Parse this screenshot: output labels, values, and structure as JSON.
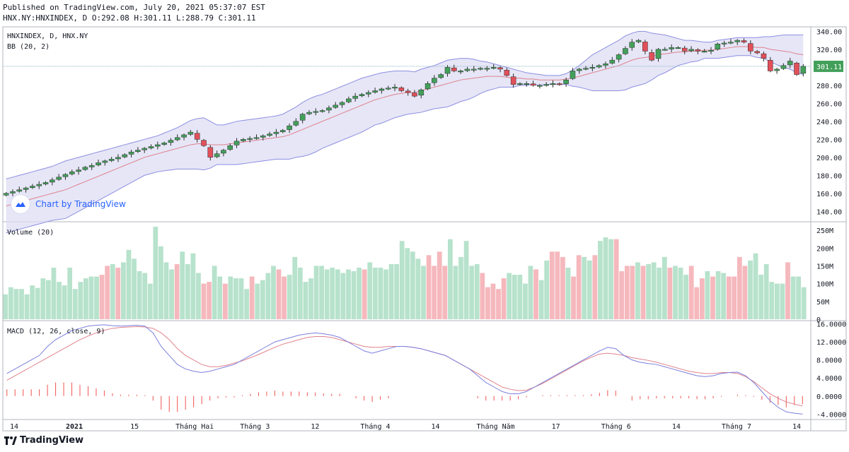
{
  "header": {
    "published": "Published on TradingView.com, July 20, 2021 05:37:07 EST",
    "ohlc_line": "HNX.NY:HNXINDEX, D O:292.08 H:301.11 L:288.79 C:301.11"
  },
  "footer": {
    "brand": "TradingView"
  },
  "watermark": {
    "label": "Chart by TradingView"
  },
  "colors": {
    "up": "#26a69a",
    "down": "#ef5350",
    "up_candle": "#43a05a",
    "down_candle": "#e2505a",
    "vol_up": "#b7e2cc",
    "vol_down": "#f5b8bd",
    "bb_band": "#8c8ee0",
    "bb_fill": "#dedef4",
    "basis": "#e0828c",
    "macd": "#7b7fdc",
    "signal": "#e0828c",
    "hist": "#ef5350",
    "price_badge": "#43a05a"
  },
  "chart_data": [
    {
      "type": "candlestick",
      "legend": [
        "HNXINDEX, D, HNX.NY",
        "BB (20, 2)"
      ],
      "ylim": [
        130,
        345
      ],
      "y_ticks": [
        "340.00",
        "320.00",
        "300.00",
        "280.00",
        "260.00",
        "240.00",
        "220.00",
        "200.00",
        "180.00",
        "160.00",
        "140.00"
      ],
      "last_price": "301.11",
      "closes": [
        160,
        162,
        164,
        166,
        168,
        170,
        172,
        175,
        178,
        181,
        184,
        186,
        189,
        191,
        194,
        196,
        198,
        200,
        203,
        206,
        208,
        210,
        212,
        214,
        216,
        219,
        222,
        225,
        228,
        220,
        213,
        200,
        204,
        208,
        213,
        218,
        220,
        221,
        222,
        224,
        226,
        228,
        230,
        235,
        240,
        248,
        250,
        251,
        252,
        255,
        258,
        261,
        265,
        268,
        270,
        272,
        274,
        276,
        277,
        278,
        274,
        272,
        268,
        275,
        282,
        288,
        292,
        300,
        296,
        296,
        298,
        298,
        299,
        299,
        300,
        298,
        291,
        281,
        282,
        282,
        280,
        280,
        281,
        282,
        281,
        286,
        296,
        298,
        299,
        300,
        302,
        304,
        308,
        314,
        321,
        328,
        330,
        318,
        308,
        320,
        320,
        322,
        322,
        318,
        320,
        318,
        318,
        319,
        326,
        327,
        328,
        330,
        328,
        318,
        316,
        310,
        296,
        298,
        302,
        307,
        292,
        301.11
      ],
      "bb_upper": [
        176,
        178,
        180,
        182,
        184,
        186,
        188,
        190,
        193,
        196,
        198,
        200,
        202,
        204,
        206,
        208,
        210,
        212,
        214,
        216,
        218,
        220,
        222,
        224,
        227,
        230,
        233,
        237,
        241,
        243,
        244,
        240,
        236,
        236,
        238,
        240,
        241,
        242,
        243,
        244,
        245,
        246,
        248,
        252,
        256,
        261,
        265,
        268,
        270,
        273,
        276,
        279,
        282,
        285,
        288,
        290,
        292,
        294,
        295,
        296,
        296,
        296,
        295,
        298,
        300,
        302,
        305,
        308,
        309,
        310,
        310,
        309,
        307,
        306,
        304,
        302,
        300,
        298,
        296,
        294,
        293,
        292,
        291,
        291,
        291,
        293,
        297,
        302,
        308,
        314,
        318,
        322,
        326,
        330,
        335,
        338,
        340,
        340,
        338,
        337,
        336,
        334,
        332,
        330,
        330,
        329,
        328,
        328,
        330,
        331,
        332,
        333,
        333,
        333,
        333,
        334,
        334,
        335,
        336,
        336,
        336,
        336
      ],
      "bb_basis": [
        146,
        148,
        150,
        152,
        154,
        156,
        158,
        160,
        162,
        164,
        167,
        170,
        173,
        176,
        179,
        182,
        185,
        188,
        191,
        194,
        197,
        200,
        202,
        204,
        206,
        208,
        210,
        212,
        214,
        215,
        215,
        214,
        214,
        214,
        215,
        216,
        217,
        218,
        219,
        220,
        221,
        222,
        223,
        225,
        228,
        231,
        234,
        237,
        240,
        243,
        246,
        249,
        252,
        255,
        258,
        261,
        264,
        266,
        268,
        270,
        271,
        272,
        272,
        274,
        276,
        278,
        280,
        282,
        284,
        286,
        287,
        288,
        289,
        290,
        290,
        290,
        289,
        288,
        288,
        287,
        287,
        286,
        286,
        286,
        286,
        287,
        288,
        290,
        292,
        294,
        296,
        298,
        300,
        302,
        305,
        308,
        310,
        311,
        312,
        314,
        315,
        316,
        317,
        317,
        318,
        318,
        319,
        319,
        320,
        321,
        322,
        323,
        323,
        323,
        322,
        322,
        320,
        319,
        318,
        317,
        315,
        314
      ],
      "bb_lower": [
        116,
        118,
        120,
        122,
        124,
        126,
        128,
        130,
        131,
        132,
        136,
        140,
        144,
        148,
        152,
        156,
        160,
        164,
        168,
        172,
        176,
        180,
        182,
        184,
        185,
        186,
        187,
        187,
        187,
        187,
        186,
        188,
        192,
        192,
        192,
        192,
        193,
        194,
        195,
        196,
        197,
        198,
        198,
        198,
        200,
        201,
        203,
        206,
        210,
        213,
        216,
        219,
        222,
        225,
        228,
        232,
        236,
        238,
        241,
        244,
        246,
        248,
        249,
        250,
        252,
        254,
        255,
        256,
        259,
        262,
        264,
        267,
        271,
        274,
        276,
        278,
        278,
        278,
        280,
        280,
        281,
        280,
        281,
        281,
        281,
        281,
        279,
        278,
        276,
        274,
        274,
        274,
        274,
        274,
        275,
        278,
        280,
        282,
        286,
        291,
        294,
        298,
        302,
        304,
        306,
        307,
        310,
        310,
        310,
        311,
        312,
        313,
        313,
        313,
        311,
        310,
        306,
        303,
        300,
        298,
        294,
        292
      ]
    },
    {
      "type": "bar",
      "legend": "Volume (20)",
      "ylim": [
        0,
        270
      ],
      "y_ticks": [
        "250M",
        "200M",
        "150M",
        "100M",
        "50M",
        "0"
      ],
      "values": [
        70,
        90,
        85,
        85,
        70,
        95,
        88,
        115,
        110,
        145,
        105,
        95,
        145,
        85,
        105,
        115,
        120,
        120,
        125,
        150,
        155,
        145,
        160,
        195,
        170,
        135,
        130,
        100,
        260,
        205,
        160,
        140,
        155,
        190,
        155,
        185,
        130,
        100,
        105,
        150,
        120,
        100,
        120,
        115,
        115,
        85,
        120,
        100,
        110,
        130,
        150,
        140,
        120,
        125,
        175,
        145,
        105,
        115,
        150,
        150,
        140,
        145,
        140,
        130,
        140,
        135,
        145,
        140,
        160,
        145,
        145,
        140,
        155,
        155,
        220,
        200,
        190,
        170,
        150,
        180,
        150,
        190,
        150,
        225,
        150,
        175,
        220,
        150,
        155,
        130,
        90,
        100,
        85,
        115,
        130,
        125,
        125,
        100,
        150,
        140,
        110,
        165,
        190,
        190,
        175,
        145,
        120,
        180,
        175,
        165,
        180,
        220,
        230,
        225,
        225,
        135,
        150,
        150,
        160,
        150,
        155,
        160,
        145,
        175,
        145,
        150,
        145,
        125,
        150,
        90,
        115,
        135,
        120,
        135,
        130,
        120,
        120,
        175,
        150,
        165,
        185,
        125,
        155,
        105,
        100,
        100,
        160,
        120,
        120,
        90
      ],
      "directions": "uuuuuuuuuuuuuuuuuudduduuuuuuuuuuduuuudduuduuuuduuuudduuuuuuuuuuuuuuduuuuuuuuuuudddduuuuuuddddduuuuuduudddudduuduuudddduduuuuduuuddduduudddduuuuuuuduuuuuuuuuduudd"
    },
    {
      "type": "line",
      "legend": "MACD (12, 26, close, 9)",
      "ylim": [
        -5.2,
        16.4
      ],
      "y_ticks": [
        "16.0000",
        "12.0000",
        "8.0000",
        "4.0000",
        "0.0000",
        "-4.0000"
      ],
      "x_ticks": [
        "14",
        "2021",
        "15",
        "Tháng Hai",
        "Tháng 3",
        "12",
        "Tháng 4",
        "14",
        "Tháng Năm",
        "17",
        "Tháng 6",
        "14",
        "Tháng 7",
        "14"
      ],
      "series": [
        {
          "name": "MACD",
          "values": [
            5,
            6,
            7,
            8,
            9,
            11,
            12.5,
            13.5,
            14.5,
            15,
            15.5,
            15.7,
            15.8,
            15.6,
            15.5,
            15.6,
            15.7,
            15.5,
            14,
            11,
            9,
            7,
            6,
            5.5,
            5.2,
            5.5,
            6,
            6.5,
            7,
            8,
            9,
            10,
            11,
            12,
            12.5,
            13,
            13.5,
            13.8,
            14,
            13.8,
            13.5,
            13,
            12,
            11,
            10,
            9.5,
            10,
            10.5,
            11,
            11,
            10.8,
            10.5,
            10,
            9.5,
            9,
            8,
            7,
            6,
            4.5,
            3,
            2,
            1,
            0.5,
            0.5,
            1,
            2,
            3,
            4,
            5,
            6,
            7,
            8,
            9,
            10,
            10.8,
            10.5,
            9,
            8,
            7.5,
            7.2,
            7,
            6.5,
            6,
            5.5,
            5,
            4.5,
            4.3,
            4.5,
            5,
            5.2,
            5.3,
            4.5,
            3,
            1,
            -1,
            -2.5,
            -3.5,
            -3.8,
            -4
          ]
        },
        {
          "name": "Signal",
          "values": [
            3.5,
            4.5,
            5.5,
            6.5,
            7.5,
            8.5,
            9.5,
            10.5,
            11.5,
            12.5,
            13.3,
            14,
            14.6,
            15,
            15.2,
            15.3,
            15.4,
            15.3,
            15,
            14,
            12.5,
            10.5,
            9,
            8,
            7,
            6.5,
            6.5,
            6.8,
            7.3,
            7.8,
            8.5,
            9.2,
            10,
            10.8,
            11.5,
            12,
            12.5,
            13,
            13.2,
            13.2,
            13,
            12.5,
            12,
            11.5,
            11,
            10.8,
            10.8,
            11,
            11,
            11,
            10.8,
            10.5,
            10,
            9.5,
            9,
            8,
            7,
            6,
            5,
            4,
            3,
            2,
            1.5,
            1.2,
            1.3,
            2,
            2.8,
            3.8,
            4.8,
            5.8,
            6.8,
            7.8,
            8.6,
            9.3,
            9.5,
            9.3,
            9,
            8.5,
            8.2,
            7.9,
            7.5,
            7,
            6.5,
            6,
            5.5,
            5.2,
            5,
            5,
            5.2,
            5.2,
            5,
            4.3,
            3.2,
            1.8,
            0.5,
            -0.5,
            -1.3,
            -1.8,
            -2.2
          ]
        }
      ],
      "histogram": [
        1.5,
        1.5,
        1.5,
        1.5,
        1.5,
        2.5,
        3,
        3,
        3,
        2.5,
        2.2,
        1.7,
        1.2,
        0.6,
        0.3,
        0.3,
        0.3,
        0.2,
        -1,
        -3,
        -3.5,
        -3.5,
        -3,
        -2.5,
        -1.8,
        -1,
        -0.5,
        -0.3,
        -0.3,
        0.2,
        0.5,
        0.8,
        1,
        1.2,
        1,
        1,
        1,
        0.8,
        0.8,
        0.6,
        0.5,
        0.5,
        0,
        -0.5,
        -1,
        -1.3,
        -0.8,
        -0.5,
        0,
        0,
        0,
        0,
        0,
        0,
        0,
        0,
        0,
        0,
        -0.5,
        -1,
        -1,
        -1,
        -1,
        -0.7,
        -0.3,
        0,
        0.2,
        0.2,
        0.2,
        0.2,
        0.2,
        0.2,
        0.4,
        0.7,
        1.3,
        1.2,
        0,
        -1,
        -0.7,
        -0.7,
        -0.5,
        -0.5,
        -0.5,
        -0.5,
        -0.5,
        -0.7,
        -0.7,
        -0.5,
        -0.2,
        0,
        0.3,
        0.2,
        -0.2,
        -0.8,
        -1.5,
        -2,
        -2.5,
        -2,
        -1.8
      ]
    }
  ]
}
